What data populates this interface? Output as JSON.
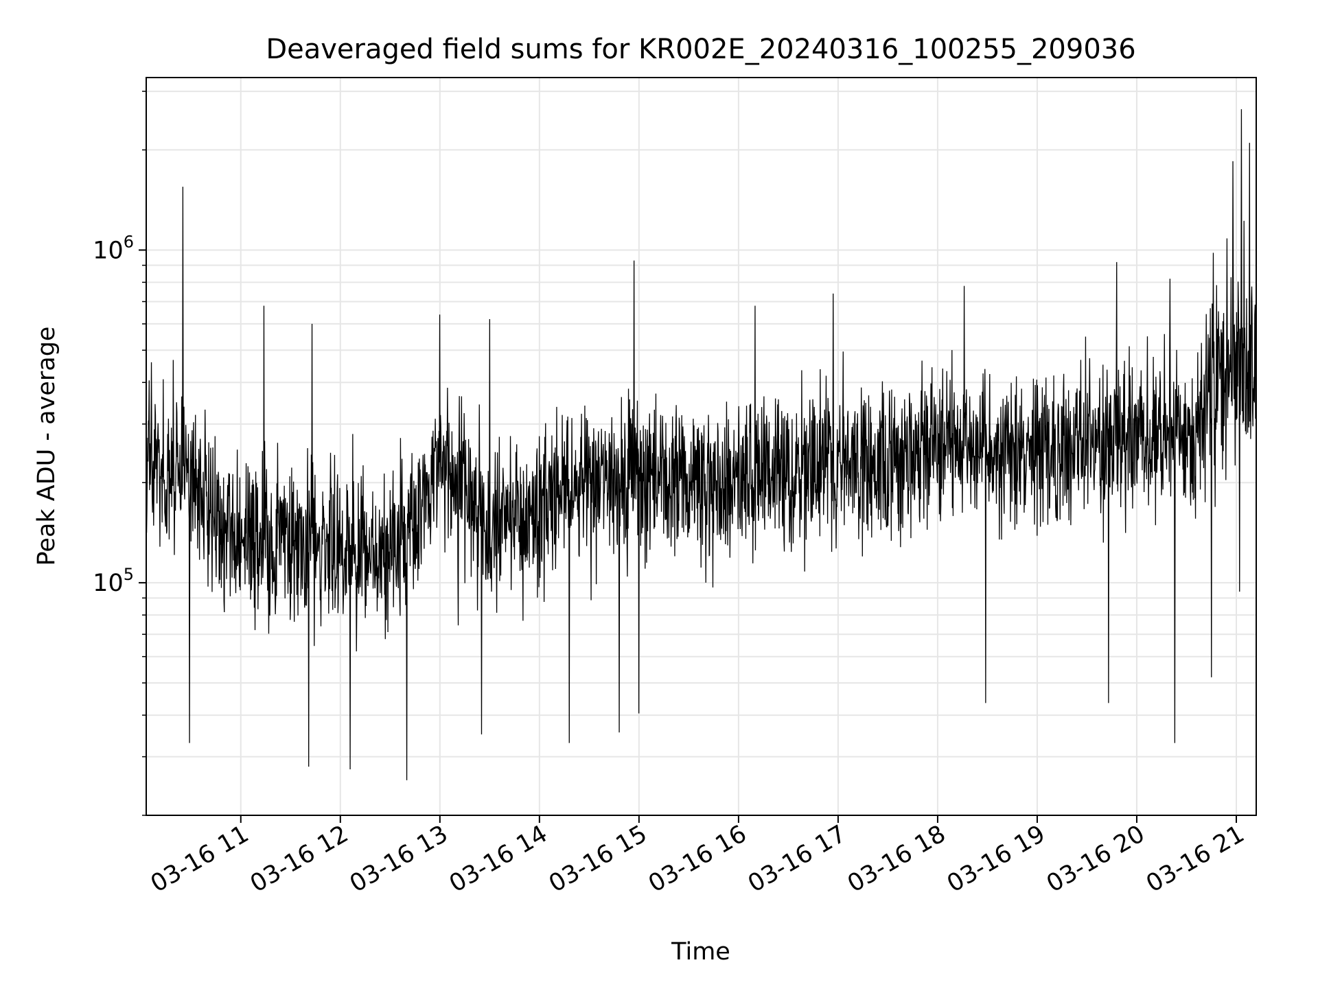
{
  "chart_data": {
    "type": "line",
    "title": "Deaveraged field sums for KR002E_20240316_100255_209036",
    "xlabel": "Time",
    "ylabel": "Peak ADU - average",
    "x_start": "2024-03-16T10:03:00",
    "x_end": "2024-03-16T21:12:00",
    "xlim": [
      "2024-03-16T10:03:00",
      "2024-03-16T21:12:00"
    ],
    "ylim": [
      20000,
      3300000
    ],
    "yscale": "log",
    "grid": true,
    "line_color": "#000000",
    "x_ticks": [
      {
        "value": "2024-03-16T11:00:00",
        "label": "03-16 11"
      },
      {
        "value": "2024-03-16T12:00:00",
        "label": "03-16 12"
      },
      {
        "value": "2024-03-16T13:00:00",
        "label": "03-16 13"
      },
      {
        "value": "2024-03-16T14:00:00",
        "label": "03-16 14"
      },
      {
        "value": "2024-03-16T15:00:00",
        "label": "03-16 15"
      },
      {
        "value": "2024-03-16T16:00:00",
        "label": "03-16 16"
      },
      {
        "value": "2024-03-16T17:00:00",
        "label": "03-16 17"
      },
      {
        "value": "2024-03-16T18:00:00",
        "label": "03-16 18"
      },
      {
        "value": "2024-03-16T19:00:00",
        "label": "03-16 19"
      },
      {
        "value": "2024-03-16T20:00:00",
        "label": "03-16 20"
      },
      {
        "value": "2024-03-16T21:00:00",
        "label": "03-16 21"
      }
    ],
    "y_ticks": [
      {
        "value": 100000,
        "base": "10",
        "exp": "5"
      },
      {
        "value": 1000000,
        "base": "10",
        "exp": "6"
      }
    ],
    "series": [
      {
        "trend": [
          {
            "x": "2024-03-16T10:03:00",
            "y": 230000
          },
          {
            "x": "2024-03-16T10:30:00",
            "y": 210000
          },
          {
            "x": "2024-03-16T11:00:00",
            "y": 130000
          },
          {
            "x": "2024-03-16T11:30:00",
            "y": 135000
          },
          {
            "x": "2024-03-16T12:00:00",
            "y": 120000
          },
          {
            "x": "2024-03-16T12:30:00",
            "y": 130000
          },
          {
            "x": "2024-03-16T13:00:00",
            "y": 220000
          },
          {
            "x": "2024-03-16T13:30:00",
            "y": 140000
          },
          {
            "x": "2024-03-16T14:00:00",
            "y": 170000
          },
          {
            "x": "2024-03-16T14:30:00",
            "y": 200000
          },
          {
            "x": "2024-03-16T15:00:00",
            "y": 210000
          },
          {
            "x": "2024-03-16T15:30:00",
            "y": 195000
          },
          {
            "x": "2024-03-16T16:00:00",
            "y": 200000
          },
          {
            "x": "2024-03-16T16:30:00",
            "y": 220000
          },
          {
            "x": "2024-03-16T17:00:00",
            "y": 230000
          },
          {
            "x": "2024-03-16T17:30:00",
            "y": 225000
          },
          {
            "x": "2024-03-16T18:00:00",
            "y": 260000
          },
          {
            "x": "2024-03-16T18:30:00",
            "y": 250000
          },
          {
            "x": "2024-03-16T19:00:00",
            "y": 250000
          },
          {
            "x": "2024-03-16T19:30:00",
            "y": 260000
          },
          {
            "x": "2024-03-16T20:00:00",
            "y": 270000
          },
          {
            "x": "2024-03-16T20:30:00",
            "y": 280000
          },
          {
            "x": "2024-03-16T20:50:00",
            "y": 450000
          },
          {
            "x": "2024-03-16T21:12:00",
            "y": 500000
          }
        ],
        "peaks": [
          {
            "x": "2024-03-16T10:25:00",
            "y": 1550000
          },
          {
            "x": "2024-03-16T11:14:00",
            "y": 680000
          },
          {
            "x": "2024-03-16T11:43:00",
            "y": 600000
          },
          {
            "x": "2024-03-16T13:00:00",
            "y": 640000
          },
          {
            "x": "2024-03-16T13:30:00",
            "y": 620000
          },
          {
            "x": "2024-03-16T14:57:00",
            "y": 930000
          },
          {
            "x": "2024-03-16T16:10:00",
            "y": 680000
          },
          {
            "x": "2024-03-16T16:57:00",
            "y": 740000
          },
          {
            "x": "2024-03-16T18:16:00",
            "y": 780000
          },
          {
            "x": "2024-03-16T19:48:00",
            "y": 920000
          },
          {
            "x": "2024-03-16T20:20:00",
            "y": 820000
          },
          {
            "x": "2024-03-16T20:45:00",
            "y": 1040000
          },
          {
            "x": "2024-03-16T20:58:00",
            "y": 1850000
          },
          {
            "x": "2024-03-16T21:03:00",
            "y": 2650000
          },
          {
            "x": "2024-03-16T21:08:00",
            "y": 2100000
          }
        ],
        "troughs": [
          {
            "x": "2024-03-16T10:29:00",
            "y": 33000
          },
          {
            "x": "2024-03-16T11:41:00",
            "y": 28000
          },
          {
            "x": "2024-03-16T12:06:00",
            "y": 27500
          },
          {
            "x": "2024-03-16T12:40:00",
            "y": 25500
          },
          {
            "x": "2024-03-16T13:25:00",
            "y": 35000
          },
          {
            "x": "2024-03-16T14:18:00",
            "y": 33000
          },
          {
            "x": "2024-03-16T14:48:00",
            "y": 35500
          },
          {
            "x": "2024-03-16T15:00:00",
            "y": 40500
          },
          {
            "x": "2024-03-16T18:29:00",
            "y": 43500
          },
          {
            "x": "2024-03-16T19:43:00",
            "y": 43500
          },
          {
            "x": "2024-03-16T20:23:00",
            "y": 33000
          },
          {
            "x": "2024-03-16T20:45:00",
            "y": 52000
          },
          {
            "x": "2024-03-16T21:02:00",
            "y": 94000
          }
        ]
      }
    ]
  }
}
